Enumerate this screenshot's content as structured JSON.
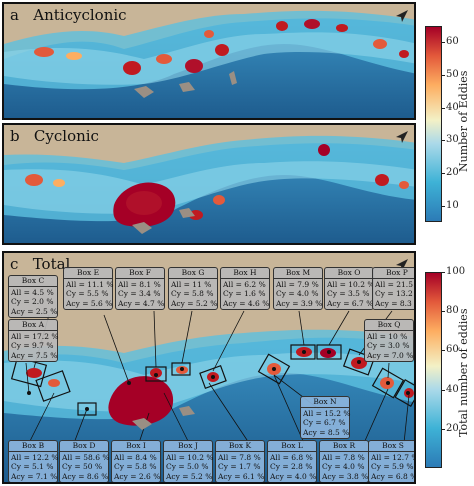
{
  "panels": {
    "a": {
      "letter": "a",
      "title": "Anticyclonic"
    },
    "b": {
      "letter": "b",
      "title": "Cyclonic"
    },
    "c": {
      "letter": "c",
      "title": "Total"
    }
  },
  "colorbar_top": {
    "label": "Number of Eddies",
    "ticks": [
      "10",
      "20",
      "30",
      "40",
      "50",
      "60"
    ],
    "range": [
      5,
      65
    ]
  },
  "colorbar_bottom": {
    "label": "Total number of eddies",
    "ticks": [
      "20",
      "40",
      "60",
      "80",
      "100"
    ],
    "range": [
      0,
      100
    ]
  },
  "colors": {
    "land": "#c8b598",
    "low": "#2c7bb6",
    "high": "#a50026",
    "deep_water": "#1d5a8c"
  },
  "icons": [
    "north-arrow-icon"
  ],
  "boxes": [
    {
      "id": "C",
      "title": "Box C",
      "all": "All = 4.5 %",
      "cy": "Cy = 2.0 %",
      "acy": "Acy = 2.5 %",
      "style": "gray"
    },
    {
      "id": "E",
      "title": "Box E",
      "all": "All = 11.1 %",
      "cy": "Cy = 5.5 %",
      "acy": "Acy = 5.6 %",
      "style": "gray"
    },
    {
      "id": "F",
      "title": "Box F",
      "all": "All = 8.1 %",
      "cy": "Cy = 3.4 %",
      "acy": "Acy = 4.7 %",
      "style": "gray"
    },
    {
      "id": "G",
      "title": "Box G",
      "all": "All = 11 %",
      "cy": "Cy = 5.8 %",
      "acy": "Acy = 5.2 %",
      "style": "gray"
    },
    {
      "id": "H",
      "title": "Box H",
      "all": "All = 6.2 %",
      "cy": "Cy = 1.6 %",
      "acy": "Acy = 4.6 %",
      "style": "gray"
    },
    {
      "id": "M",
      "title": "Box M",
      "all": "All = 7.9 %",
      "cy": "Cy = 4.0 %",
      "acy": "Acy = 3.9 %",
      "style": "gray"
    },
    {
      "id": "O",
      "title": "Box O",
      "all": "All = 10.2 %",
      "cy": "Cy = 3.5 %",
      "acy": "Acy = 6.7 %",
      "style": "gray"
    },
    {
      "id": "P",
      "title": "Box P",
      "all": "All = 21.5 %",
      "cy": "Cy = 13.2 %",
      "acy": "Acy = 8.3 %",
      "style": "gray"
    },
    {
      "id": "A",
      "title": "Box A",
      "all": "All = 17.2 %",
      "cy": "Cy = 9.7 %",
      "acy": "Acy = 7.5 %",
      "style": "gray"
    },
    {
      "id": "Q",
      "title": "Box Q",
      "all": "All = 10 %",
      "cy": "Cy = 3.0 %",
      "acy": "Acy = 7.0 %",
      "style": "gray"
    },
    {
      "id": "N",
      "title": "Box N",
      "all": "All = 15.2 %",
      "cy": "Cy = 6.7 %",
      "acy": "Acy = 8.5 %",
      "style": "blue"
    },
    {
      "id": "B",
      "title": "Box B",
      "all": "All = 12.2 %",
      "cy": "Cy = 5.1 %",
      "acy": "Acy = 7.1 %",
      "style": "blue"
    },
    {
      "id": "D",
      "title": "Box D",
      "all": "All = 58.6 %",
      "cy": "Cy = 50 %",
      "acy": "Acy = 8.6 %",
      "style": "blue"
    },
    {
      "id": "I",
      "title": "Box I",
      "all": "All = 8.4 %",
      "cy": "Cy = 5.8 %",
      "acy": "Acy = 2.6 %",
      "style": "blue"
    },
    {
      "id": "J",
      "title": "Box J",
      "all": "All = 10.2 %",
      "cy": "Cy = 5.0 %",
      "acy": "Acy = 5.2 %",
      "style": "blue"
    },
    {
      "id": "K",
      "title": "Box K",
      "all": "All = 7.8 %",
      "cy": "Cy = 1.7 %",
      "acy": "Acy = 6.1 %",
      "style": "blue"
    },
    {
      "id": "L",
      "title": "Box L",
      "all": "All = 6.8 %",
      "cy": "Cy = 2.8 %",
      "acy": "Acy = 4.0 %",
      "style": "blue"
    },
    {
      "id": "R",
      "title": "Box R",
      "all": "All = 7.8 %",
      "cy": "Cy = 4.0 %",
      "acy": "Acy = 3.8 %",
      "style": "blue"
    },
    {
      "id": "S",
      "title": "Box S",
      "all": "All = 12.7 %",
      "cy": "Cy = 5.9 %",
      "acy": "Acy = 6.8 %",
      "style": "blue"
    }
  ]
}
